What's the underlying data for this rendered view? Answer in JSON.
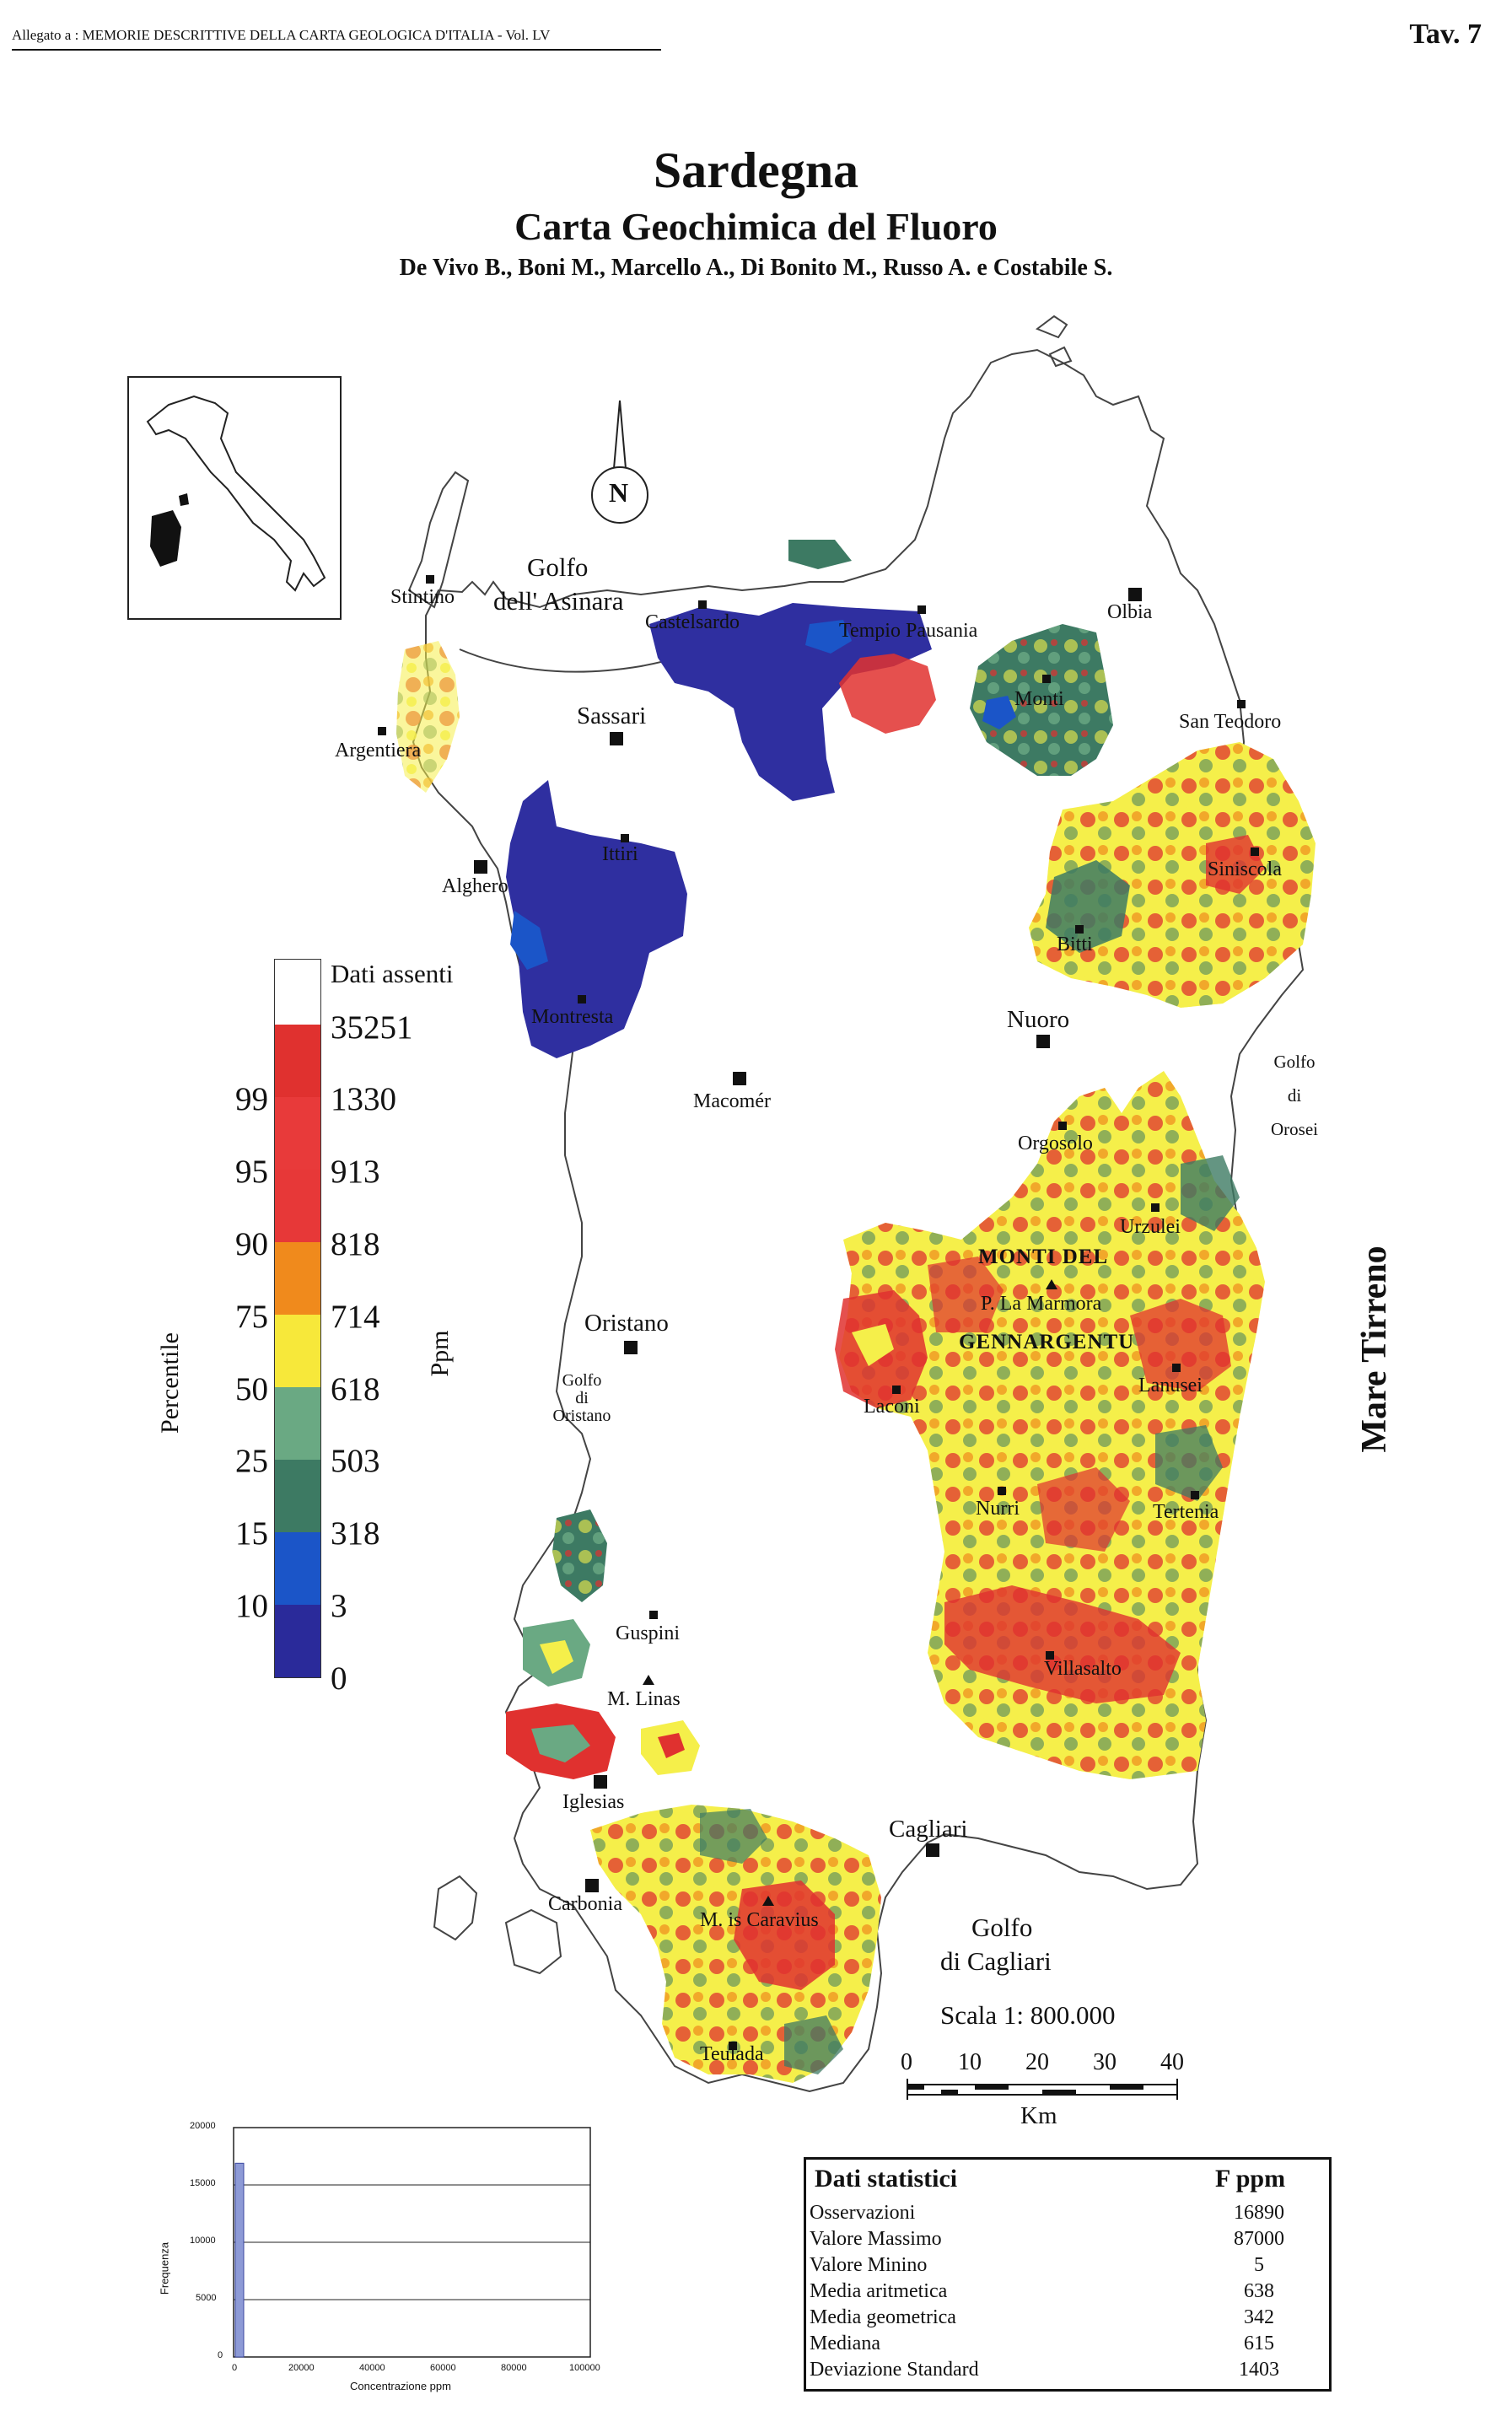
{
  "header": {
    "allegato": "Allegato a : MEMORIE DESCRITTIVE DELLA CARTA GEOLOGICA D'ITALIA - Vol. LV",
    "tavola": "Tav. 7"
  },
  "title": "Sardegna",
  "subtitle": "Carta Geochimica del Fluoro",
  "authors": "De Vivo B., Boni M., Marcello A., Di Bonito M., Russo A. e Costabile S.",
  "north_arrow_label": "N",
  "seas": {
    "golfo_asinara_1": "Golfo",
    "golfo_asinara_2": "dell' Asinara",
    "golfo_orosei_1": "Golfo",
    "golfo_orosei_2": "di",
    "golfo_orosei_3": "Orosei",
    "golfo_oristano_1": "Golfo",
    "golfo_oristano_2": "di",
    "golfo_oristano_3": "Oristano",
    "golfo_cagliari_1": "Golfo",
    "golfo_cagliari_2": "di  Cagliari",
    "mare_tirreno": "Mare  Tirreno"
  },
  "places": {
    "stintino": "Stintino",
    "castelsardo": "Castelsardo",
    "tempio": "Tempio Pausania",
    "olbia": "Olbia",
    "monti": "Monti",
    "san_teodoro": "San Teodoro",
    "argentiera": "Argentiera",
    "sassari": "Sassari",
    "ittiri": "Ittiri",
    "alghero": "Alghero",
    "siniscola": "Siniscola",
    "bitti": "Bitti",
    "montresta": "Montresta",
    "nuoro": "Nuoro",
    "macomer": "Macomér",
    "orgosolo": "Orgosolo",
    "urzulei": "Urzulei",
    "monti_del": "MONTI  DEL",
    "p_la_marmora": "P. La Marmora",
    "gennargentu": "GENNARGENTU",
    "lanusei": "Lanusei",
    "oristano": "Oristano",
    "laconi": "Laconi",
    "nurri": "Nurri",
    "tertenia": "Tertenia",
    "guspini": "Guspini",
    "m_linas": "M. Linas",
    "villasalto": "Villasalto",
    "iglesias": "Iglesias",
    "cagliari": "Cagliari",
    "carbonia": "Carbonia",
    "m_is_caravius": "M. is Caravius",
    "teulada": "Teulada"
  },
  "legend": {
    "no_data": "Dati assenti",
    "percentile_label": "Percentile",
    "ppm_label": "Ppm",
    "ppm_values": [
      "35251",
      "1330",
      "913",
      "818",
      "714",
      "618",
      "503",
      "318",
      "3",
      "0"
    ],
    "percentiles": [
      "99",
      "95",
      "90",
      "75",
      "50",
      "25",
      "15",
      "10"
    ],
    "colors": [
      "#ffffff",
      "#e0312f",
      "#e83a3a",
      "#f08a1c",
      "#f7e83a",
      "#f5ef4a",
      "#6aa983",
      "#3d7a63",
      "#1b55c8",
      "#2a2a9a"
    ]
  },
  "scale": {
    "label": "Scala 1: 800.000",
    "ticks": [
      "0",
      "10",
      "20",
      "30",
      "40"
    ],
    "unit": "Km"
  },
  "stats": {
    "title": "Dati  statistici",
    "unit": "F ppm",
    "rows": [
      {
        "label": "Osservazioni",
        "value": "16890"
      },
      {
        "label": "Valore Massimo",
        "value": "87000"
      },
      {
        "label": "Valore Minino",
        "value": "5"
      },
      {
        "label": "Media aritmetica",
        "value": "638"
      },
      {
        "label": "Media geometrica",
        "value": "342"
      },
      {
        "label": "Mediana",
        "value": "615"
      },
      {
        "label": "Deviazione Standard",
        "value": "1403"
      }
    ]
  },
  "histogram": {
    "ylabel": "Frequenza",
    "xlabel": "Concentrazione ppm",
    "yticks": [
      "20000",
      "15000",
      "10000",
      "5000",
      "0"
    ],
    "xticks": [
      "0",
      "20000",
      "40000",
      "60000",
      "80000",
      "100000"
    ],
    "bar_value": 16890
  }
}
